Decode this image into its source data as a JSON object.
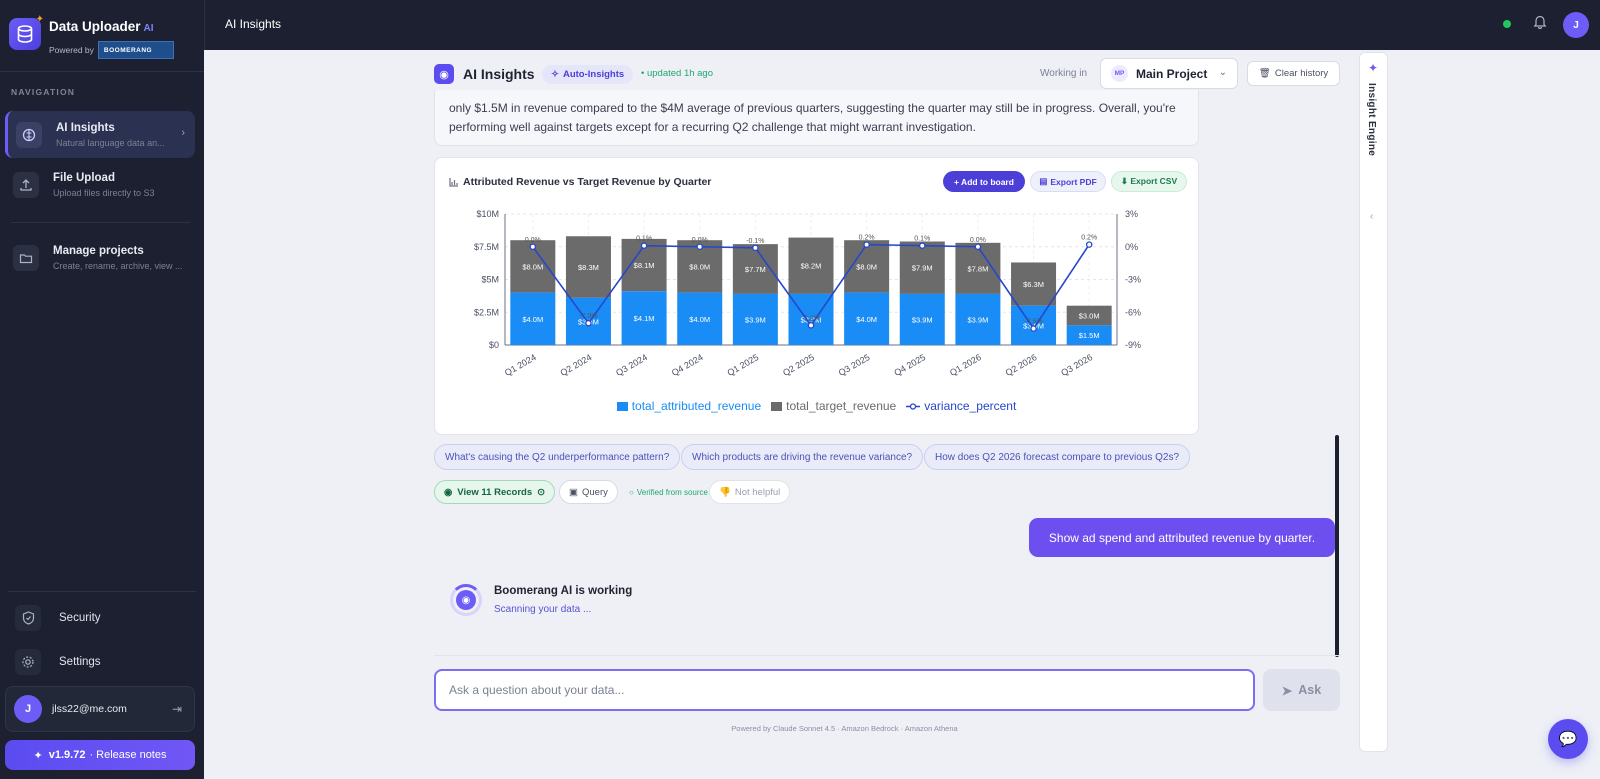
{
  "app": {
    "title": "Data Uploader",
    "ai_tag": "AI",
    "powered_by": "Powered by",
    "partner_logo": "BOOMERANG"
  },
  "sidebar": {
    "nav_heading": "NAVIGATION",
    "items": [
      {
        "label": "AI Insights",
        "sub": "Natural language data an...",
        "icon": "brain-icon",
        "active": true
      },
      {
        "label": "File Upload",
        "sub": "Upload files directly to S3",
        "icon": "upload-icon"
      },
      {
        "label": "Manage projects",
        "sub": "Create, rename, archive, view ...",
        "icon": "folders-icon"
      }
    ],
    "bottom": [
      {
        "label": "Security",
        "icon": "shield-icon"
      },
      {
        "label": "Settings",
        "icon": "gear-icon"
      }
    ],
    "user": {
      "initial": "J",
      "email": "jlss22@me.com"
    },
    "release": {
      "version": "v1.9.72",
      "label": "· Release notes"
    }
  },
  "topbar": {
    "title": "AI Insights",
    "avatar_initial": "J",
    "status_color": "#22c55e"
  },
  "header": {
    "title": "AI Insights",
    "badge": "Auto-Insights",
    "updated": "• updated 1h ago",
    "working_in": "Working in",
    "project_initials": "MP",
    "project_name": "Main Project",
    "clear_history": "Clear history"
  },
  "answer_text": "only $1.5M in revenue compared to the $4M average of previous quarters, suggesting the quarter may still be in progress. Overall, you're performing well against targets except for a recurring Q2 challenge that might warrant investigation.",
  "chart_card": {
    "title": "Attributed Revenue vs Target Revenue by Quarter",
    "add_to_board": "+ Add to board",
    "export_pdf": "Export PDF",
    "export_csv": "⬇ Export CSV"
  },
  "chart_data": {
    "type": "bar",
    "categories": [
      "Q1 2024",
      "Q2 2024",
      "Q3 2024",
      "Q4 2024",
      "Q1 2025",
      "Q2 2025",
      "Q3 2025",
      "Q4 2025",
      "Q1 2026",
      "Q2 2026",
      "Q3 2026"
    ],
    "series": [
      {
        "name": "total_attributed_revenue",
        "values": [
          4.0,
          3.6,
          4.1,
          4.0,
          3.9,
          3.9,
          4.0,
          3.9,
          3.9,
          3.0,
          1.5
        ],
        "labels": [
          "$4.0M",
          "$3.6M",
          "$4.1M",
          "$4.0M",
          "$3.9M",
          "$3.9M",
          "$4.0M",
          "$3.9M",
          "$3.9M",
          "$3.0M",
          "$1.5M"
        ],
        "color": "#1a8cf5"
      },
      {
        "name": "total_target_revenue",
        "values": [
          8.0,
          8.3,
          8.1,
          8.0,
          7.7,
          8.2,
          8.0,
          7.9,
          7.8,
          6.3,
          3.0
        ],
        "labels": [
          "$8.0M",
          "$8.3M",
          "$8.1M",
          "$8.0M",
          "$7.7M",
          "$8.2M",
          "$8.0M",
          "$7.9M",
          "$7.8M",
          "$6.3M",
          "$3.0M"
        ],
        "color": "#6b6b6b"
      },
      {
        "name": "variance_percent",
        "values": [
          0.0,
          -7.0,
          0.1,
          0.0,
          -0.1,
          -7.2,
          0.2,
          0.1,
          0.0,
          -7.5,
          0.2
        ],
        "labels": [
          "0.0%",
          "-7.0%",
          "0.1%",
          "0.0%",
          "-0.1%",
          "-7.2%",
          "0.2%",
          "0.1%",
          "0.0%",
          "-7.5%",
          "0.2%"
        ],
        "color": "#2647c8",
        "axis": "right"
      }
    ],
    "y_left": {
      "ticks": [
        "$0",
        "$2.5M",
        "$5M",
        "$7.5M",
        "$10M"
      ],
      "range": [
        0,
        10
      ]
    },
    "y_right": {
      "ticks": [
        "-9%",
        "-6%",
        "-3%",
        "0%",
        "3%"
      ],
      "range": [
        -9,
        3
      ]
    },
    "grid": true,
    "legend": "bottom"
  },
  "suggestions": [
    "What's causing the Q2 underperformance pattern?",
    "Which products are driving the revenue variance?",
    "How does Q2 2026 forecast compare to previous Q2s?"
  ],
  "actions": {
    "records": "View 11 Records",
    "query": "Query",
    "verified": "Verified from source",
    "not_helpful": "Not helpful"
  },
  "user_message": "Show ad spend and attributed revenue by quarter.",
  "working": {
    "title": "Boomerang AI is working",
    "subtitle": "Scanning your data ..."
  },
  "input": {
    "placeholder": "Ask a question about your data...",
    "button": "Ask"
  },
  "footer": "Powered by Claude Sonnet 4.5 · Amazon Bedrock · Amazon Athena",
  "rail": {
    "label": "Insight Engine"
  }
}
